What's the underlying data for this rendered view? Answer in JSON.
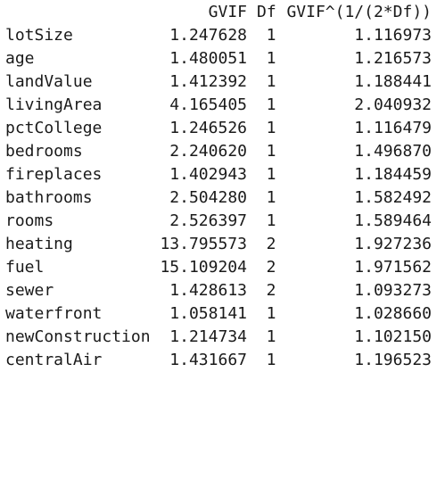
{
  "output": {
    "header": {
      "gvif": "GVIF",
      "df": "Df",
      "adj": "GVIF^(1/(2*Df))"
    },
    "rows": [
      {
        "name": "lotSize",
        "gvif": "1.247628",
        "df": "1",
        "adj": "1.116973"
      },
      {
        "name": "age",
        "gvif": "1.480051",
        "df": "1",
        "adj": "1.216573"
      },
      {
        "name": "landValue",
        "gvif": "1.412392",
        "df": "1",
        "adj": "1.188441"
      },
      {
        "name": "livingArea",
        "gvif": "4.165405",
        "df": "1",
        "adj": "2.040932"
      },
      {
        "name": "pctCollege",
        "gvif": "1.246526",
        "df": "1",
        "adj": "1.116479"
      },
      {
        "name": "bedrooms",
        "gvif": "2.240620",
        "df": "1",
        "adj": "1.496870"
      },
      {
        "name": "fireplaces",
        "gvif": "1.402943",
        "df": "1",
        "adj": "1.184459"
      },
      {
        "name": "bathrooms",
        "gvif": "2.504280",
        "df": "1",
        "adj": "1.582492"
      },
      {
        "name": "rooms",
        "gvif": "2.526397",
        "df": "1",
        "adj": "1.589464"
      },
      {
        "name": "heating",
        "gvif": "13.795573",
        "df": "2",
        "adj": "1.927236"
      },
      {
        "name": "fuel",
        "gvif": "15.109204",
        "df": "2",
        "adj": "1.971562"
      },
      {
        "name": "sewer",
        "gvif": "1.428613",
        "df": "2",
        "adj": "1.093273"
      },
      {
        "name": "waterfront",
        "gvif": "1.058141",
        "df": "1",
        "adj": "1.028660"
      },
      {
        "name": "newConstruction",
        "gvif": "1.214734",
        "df": "1",
        "adj": "1.102150"
      },
      {
        "name": "centralAir",
        "gvif": "1.431667",
        "df": "1",
        "adj": "1.196523"
      }
    ]
  }
}
